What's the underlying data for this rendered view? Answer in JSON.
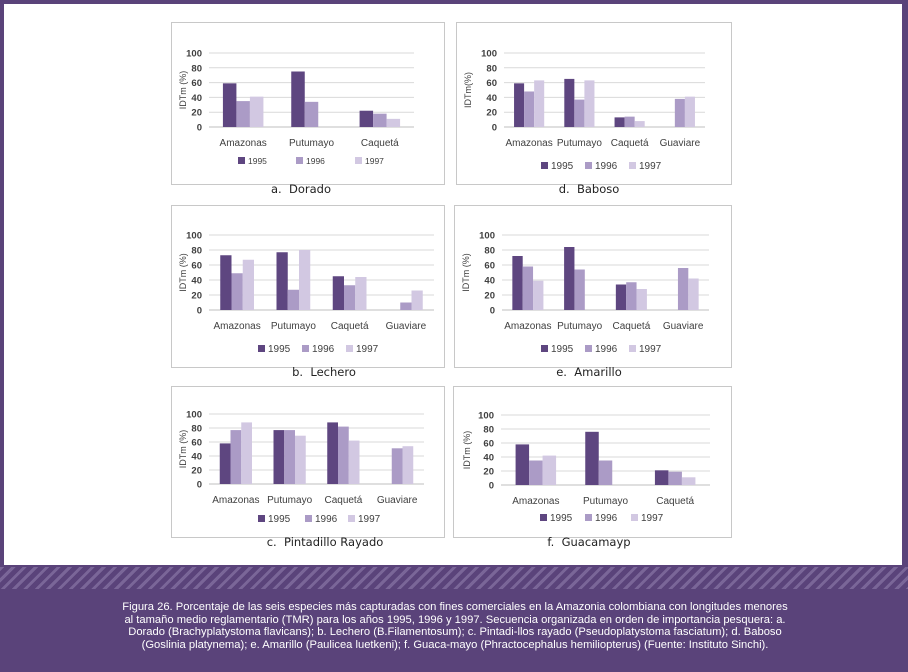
{
  "colors": {
    "1995": "#5e4680",
    "1996": "#ab9bc6",
    "1997": "#d2c8e2"
  },
  "caption": "Figura 26. Porcentaje de las seis especies más capturadas con fines comerciales en la Amazonia colombiana con longitudes menores al tamaño medio reglamentario  (TMR) para los años 1995, 1996 y 1997. Secuencia organizada en orden de importancia pesquera: a. Dorado (Brachyplatystoma flavicans); b. Lechero (B.Filamentosum); c. Pintadi-llos rayado (Pseudoplatystoma fasciatum); d. Baboso (Goslinia platynema); e. Amarillo (Paulicea luetkeni); f. Guaca-mayo (Phractocephalus hemiliopterus) (Fuente: Instituto Sinchi).",
  "chart_data": [
    {
      "id": "a",
      "type": "bar",
      "title": "a.  Dorado",
      "ylabel": "IDTm (%)",
      "ylim": [
        0,
        100
      ],
      "yticks": [
        0,
        20,
        40,
        60,
        80,
        100
      ],
      "categories": [
        "Amazonas",
        "Putumayo",
        "Caquetá"
      ],
      "series": [
        {
          "name": "1995",
          "values": [
            59,
            75,
            22
          ]
        },
        {
          "name": "1996",
          "values": [
            35,
            34,
            18
          ]
        },
        {
          "name": "1997",
          "values": [
            41,
            null,
            11
          ]
        }
      ]
    },
    {
      "id": "d",
      "type": "bar",
      "title": "d.  Baboso",
      "ylabel": "IDTm(%)",
      "ylim": [
        0,
        100
      ],
      "yticks": [
        0,
        20,
        40,
        60,
        80,
        100
      ],
      "categories": [
        "Amazonas",
        "Putumayo",
        "Caquetá",
        "Guaviare"
      ],
      "series": [
        {
          "name": "1995",
          "values": [
            59,
            65,
            13,
            null
          ]
        },
        {
          "name": "1996",
          "values": [
            48,
            37,
            14,
            38
          ]
        },
        {
          "name": "1997",
          "values": [
            63,
            63,
            8,
            41
          ]
        }
      ]
    },
    {
      "id": "b",
      "type": "bar",
      "title": "b.  Lechero",
      "ylabel": "IDTm (%)",
      "ylim": [
        0,
        100
      ],
      "yticks": [
        0,
        20,
        40,
        60,
        80,
        100
      ],
      "categories": [
        "Amazonas",
        "Putumayo",
        "Caquetá",
        "Guaviare"
      ],
      "series": [
        {
          "name": "1995",
          "values": [
            73,
            77,
            45,
            null
          ]
        },
        {
          "name": "1996",
          "values": [
            49,
            27,
            33,
            10
          ]
        },
        {
          "name": "1997",
          "values": [
            67,
            80,
            44,
            26
          ]
        }
      ]
    },
    {
      "id": "e",
      "type": "bar",
      "title": "e.  Amarillo",
      "ylabel": "IDTm (%)",
      "ylim": [
        0,
        100
      ],
      "yticks": [
        0,
        20,
        40,
        60,
        80,
        100
      ],
      "categories": [
        "Amazonas",
        "Putumayo",
        "Caquetá",
        "Guaviare"
      ],
      "series": [
        {
          "name": "1995",
          "values": [
            72,
            84,
            34,
            null
          ]
        },
        {
          "name": "1996",
          "values": [
            58,
            54,
            37,
            56
          ]
        },
        {
          "name": "1997",
          "values": [
            39,
            null,
            28,
            42
          ]
        }
      ]
    },
    {
      "id": "c",
      "type": "bar",
      "title": "c.  Pintadillo Rayado",
      "ylabel": "IDTm (%)",
      "ylim": [
        0,
        100
      ],
      "yticks": [
        0,
        20,
        40,
        60,
        80,
        100
      ],
      "categories": [
        "Amazonas",
        "Putumayo",
        "Caquetá",
        "Guaviare"
      ],
      "series": [
        {
          "name": "1995",
          "values": [
            58,
            77,
            88,
            null
          ]
        },
        {
          "name": "1996",
          "values": [
            77,
            77,
            82,
            51
          ]
        },
        {
          "name": "1997",
          "values": [
            88,
            69,
            62,
            54
          ]
        }
      ]
    },
    {
      "id": "f",
      "type": "bar",
      "title": "f.  Guacamayp",
      "ylabel": "IDTm (%)",
      "ylim": [
        0,
        100
      ],
      "yticks": [
        0,
        20,
        40,
        60,
        80,
        100
      ],
      "categories": [
        "Amazonas",
        "Putumayo",
        "Caquetá"
      ],
      "series": [
        {
          "name": "1995",
          "values": [
            58,
            76,
            21
          ]
        },
        {
          "name": "1996",
          "values": [
            35,
            35,
            19
          ]
        },
        {
          "name": "1997",
          "values": [
            42,
            null,
            11
          ]
        }
      ]
    }
  ]
}
